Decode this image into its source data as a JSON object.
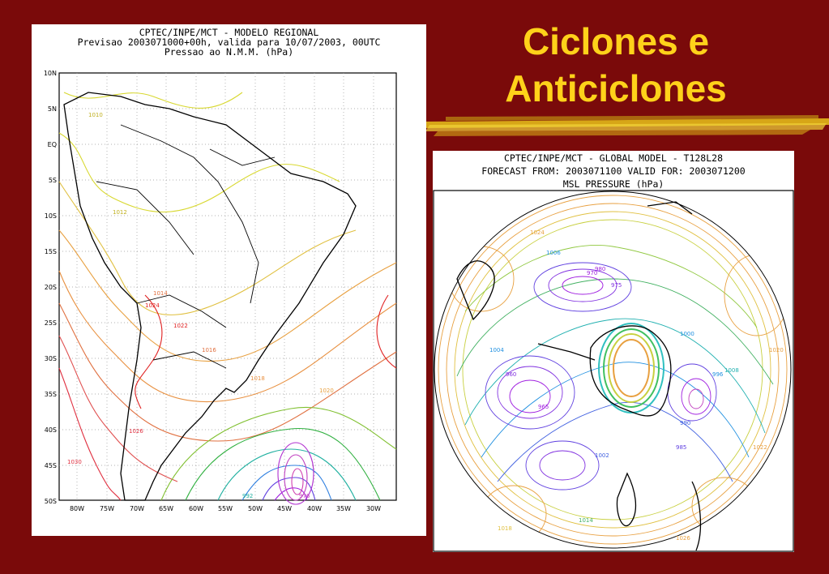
{
  "slide": {
    "title_line1": "Ciclones e",
    "title_line2": "Anticiclones",
    "background_color": "#7a0a0a",
    "title_color": "#ffd21a"
  },
  "regional_map": {
    "header_line1": "CPTEC/INPE/MCT  -   MODELO REGIONAL",
    "header_line2": "Previsao 2003071000+00h, valida para 10/07/2003, 00UTC",
    "header_line3": "Pressao ao N.M.M. (hPa)",
    "lat_labels": [
      "10N",
      "5N",
      "EQ",
      "5S",
      "10S",
      "15S",
      "20S",
      "25S",
      "30S",
      "35S",
      "40S",
      "45S",
      "50S"
    ],
    "lon_labels": [
      "80W",
      "75W",
      "70W",
      "65W",
      "60W",
      "55W",
      "50W",
      "45W",
      "40W",
      "35W",
      "30W"
    ],
    "isobar_labels": [
      "1010",
      "1012",
      "1014",
      "1016",
      "1018",
      "1020",
      "1022",
      "1024",
      "1026",
      "1030",
      "992",
      "976"
    ]
  },
  "global_map": {
    "header_line1": "CPTEC/INPE/MCT - GLOBAL MODEL - T128L28",
    "header_line2": "FORECAST FROM: 2003071100  VALID FOR: 2003071200",
    "header_line3": "MSL PRESSURE (hPa)",
    "isobar_labels": [
      "1024",
      "1020",
      "1006",
      "980",
      "975",
      "970",
      "965",
      "960",
      "985",
      "990",
      "996",
      "1000",
      "1004",
      "1008",
      "1002",
      "1014",
      "1026",
      "1018",
      "1022"
    ]
  }
}
